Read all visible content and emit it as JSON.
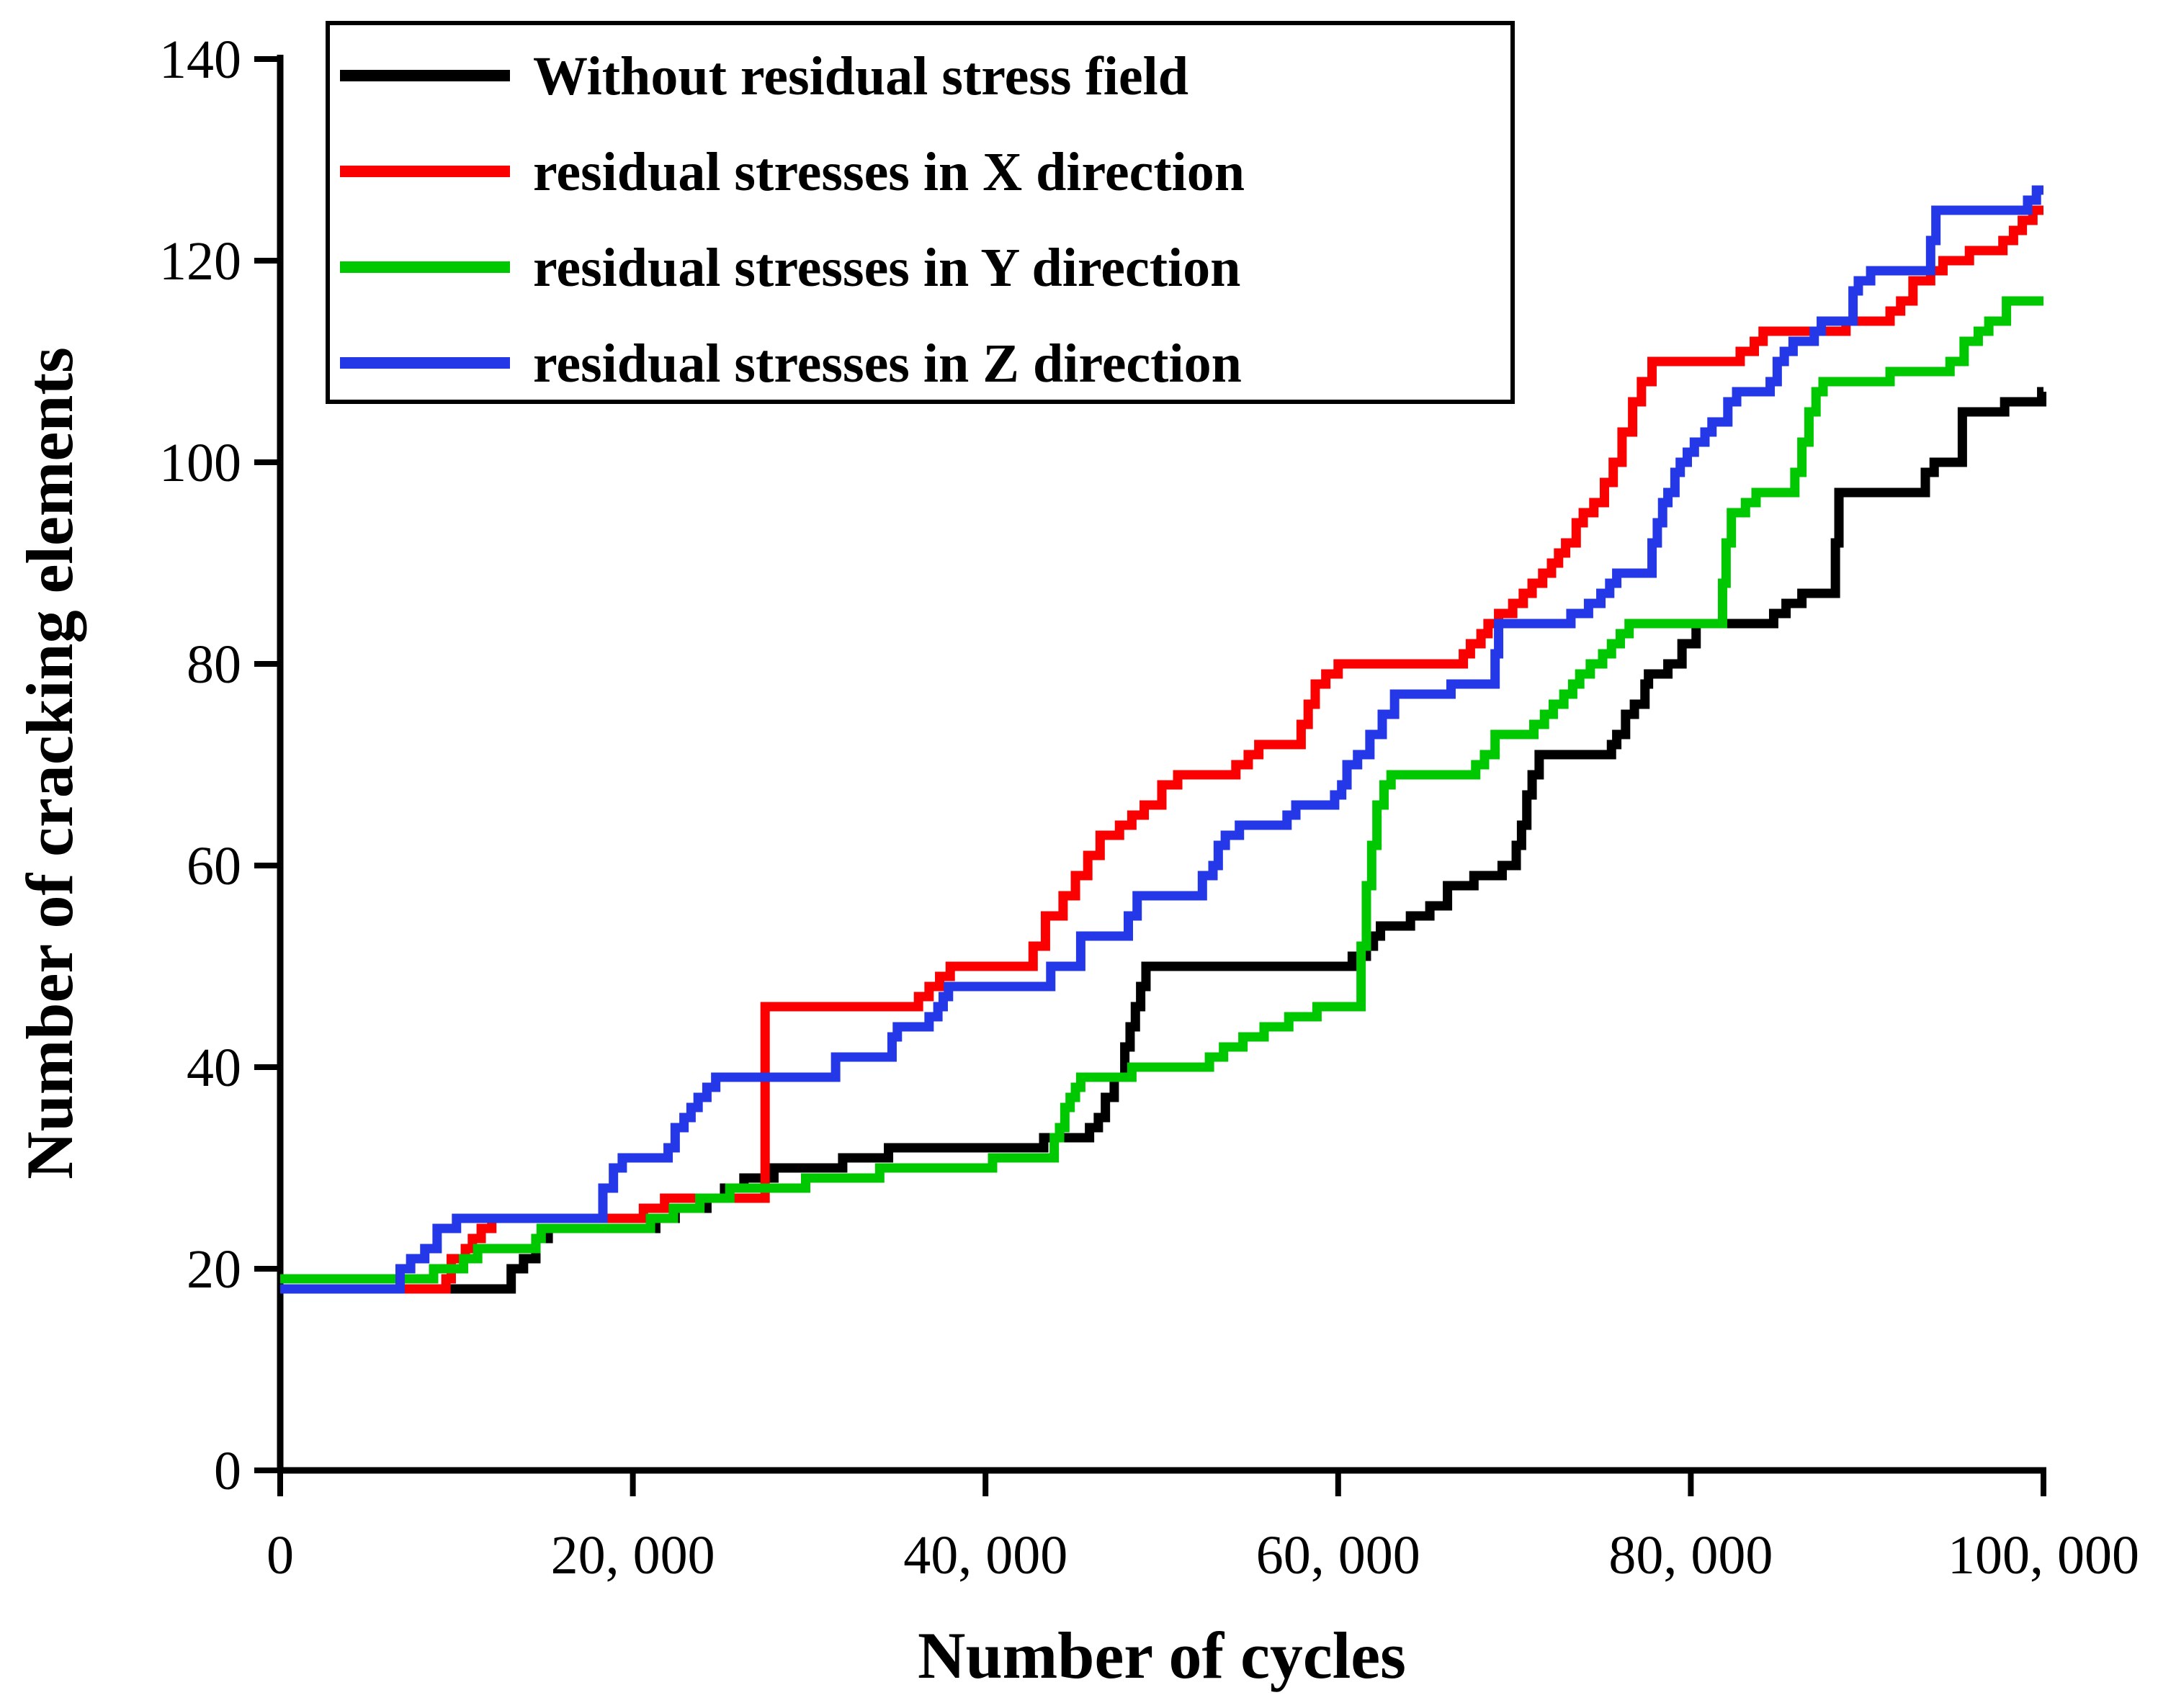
{
  "chart_data": {
    "type": "line",
    "subtype": "step-after",
    "title": "",
    "xlabel": "Number of cycles",
    "ylabel": "Number of cracking elements",
    "xlim": [
      0,
      100000
    ],
    "ylim": [
      0,
      140
    ],
    "grid": false,
    "legend_position": "top-left-inside",
    "background_color": "#ffffff",
    "axis_color": "#000000",
    "x_ticks": [
      {
        "value": 0,
        "label": "0"
      },
      {
        "value": 20000,
        "label": "20, 000"
      },
      {
        "value": 40000,
        "label": "40, 000"
      },
      {
        "value": 60000,
        "label": "60, 000"
      },
      {
        "value": 80000,
        "label": "80, 000"
      },
      {
        "value": 100000,
        "label": "100, 000"
      }
    ],
    "y_ticks": [
      {
        "value": 0,
        "label": "0"
      },
      {
        "value": 20,
        "label": "20"
      },
      {
        "value": 40,
        "label": "40"
      },
      {
        "value": 60,
        "label": "60"
      },
      {
        "value": 80,
        "label": "80"
      },
      {
        "value": 100,
        "label": "100"
      },
      {
        "value": 120,
        "label": "120"
      },
      {
        "value": 140,
        "label": "140"
      }
    ],
    "series": [
      {
        "name": "Without residual stress field",
        "color": "#000000",
        "points": [
          [
            0,
            18
          ],
          [
            13100,
            20
          ],
          [
            13800,
            21
          ],
          [
            14500,
            23
          ],
          [
            15200,
            24
          ],
          [
            21300,
            25
          ],
          [
            22400,
            26
          ],
          [
            24200,
            27
          ],
          [
            25200,
            28
          ],
          [
            26300,
            29
          ],
          [
            28000,
            30
          ],
          [
            31900,
            31
          ],
          [
            34500,
            32
          ],
          [
            43300,
            33
          ],
          [
            45900,
            34
          ],
          [
            46400,
            35
          ],
          [
            46800,
            37
          ],
          [
            47300,
            39
          ],
          [
            47900,
            42
          ],
          [
            48200,
            44
          ],
          [
            48500,
            46
          ],
          [
            48800,
            48
          ],
          [
            49100,
            50
          ],
          [
            60800,
            51
          ],
          [
            61600,
            52
          ],
          [
            62000,
            53
          ],
          [
            62400,
            54
          ],
          [
            64100,
            55
          ],
          [
            65200,
            56
          ],
          [
            66200,
            58
          ],
          [
            67700,
            59
          ],
          [
            69300,
            60
          ],
          [
            70100,
            62
          ],
          [
            70400,
            64
          ],
          [
            70700,
            67
          ],
          [
            71000,
            69
          ],
          [
            71400,
            71
          ],
          [
            75500,
            72
          ],
          [
            75800,
            73
          ],
          [
            76300,
            75
          ],
          [
            76800,
            76
          ],
          [
            77400,
            78
          ],
          [
            77600,
            79
          ],
          [
            78700,
            80
          ],
          [
            79500,
            82
          ],
          [
            80300,
            84
          ],
          [
            84700,
            85
          ],
          [
            85400,
            86
          ],
          [
            86300,
            87
          ],
          [
            88200,
            92
          ],
          [
            88400,
            97
          ],
          [
            93300,
            99
          ],
          [
            93800,
            100
          ],
          [
            95400,
            105
          ],
          [
            97800,
            106
          ],
          [
            99900,
            107
          ]
        ]
      },
      {
        "name": "residual stresses in X direction",
        "color": "#fa0000",
        "points": [
          [
            0,
            18
          ],
          [
            9400,
            19
          ],
          [
            9700,
            21
          ],
          [
            10500,
            22
          ],
          [
            10900,
            23
          ],
          [
            11400,
            24
          ],
          [
            12000,
            25
          ],
          [
            20600,
            26
          ],
          [
            21800,
            27
          ],
          [
            27500,
            46
          ],
          [
            36200,
            47
          ],
          [
            36800,
            48
          ],
          [
            37400,
            49
          ],
          [
            38000,
            50
          ],
          [
            42700,
            52
          ],
          [
            43400,
            55
          ],
          [
            44400,
            57
          ],
          [
            45100,
            59
          ],
          [
            45800,
            61
          ],
          [
            46500,
            63
          ],
          [
            47600,
            64
          ],
          [
            48300,
            65
          ],
          [
            49000,
            66
          ],
          [
            50000,
            68
          ],
          [
            50900,
            69
          ],
          [
            54200,
            70
          ],
          [
            54900,
            71
          ],
          [
            55500,
            72
          ],
          [
            57900,
            74
          ],
          [
            58300,
            76
          ],
          [
            58700,
            78
          ],
          [
            59300,
            79
          ],
          [
            60000,
            80
          ],
          [
            67100,
            81
          ],
          [
            67500,
            82
          ],
          [
            68100,
            83
          ],
          [
            68500,
            84
          ],
          [
            69100,
            85
          ],
          [
            69900,
            86
          ],
          [
            70500,
            87
          ],
          [
            71000,
            88
          ],
          [
            71600,
            89
          ],
          [
            72100,
            90
          ],
          [
            72500,
            91
          ],
          [
            72900,
            92
          ],
          [
            73500,
            94
          ],
          [
            73900,
            95
          ],
          [
            74500,
            96
          ],
          [
            75100,
            98
          ],
          [
            75600,
            100
          ],
          [
            76100,
            103
          ],
          [
            76700,
            106
          ],
          [
            77200,
            108
          ],
          [
            77800,
            110
          ],
          [
            82800,
            111
          ],
          [
            83600,
            112
          ],
          [
            84100,
            113
          ],
          [
            88800,
            114
          ],
          [
            91300,
            115
          ],
          [
            91900,
            116
          ],
          [
            92600,
            118
          ],
          [
            93600,
            119
          ],
          [
            94300,
            120
          ],
          [
            95800,
            121
          ],
          [
            97700,
            122
          ],
          [
            98300,
            123
          ],
          [
            98800,
            124
          ],
          [
            99400,
            125
          ]
        ]
      },
      {
        "name": "residual stresses in Y direction",
        "color": "#00c800",
        "points": [
          [
            0,
            19
          ],
          [
            8700,
            20
          ],
          [
            10400,
            21
          ],
          [
            11200,
            22
          ],
          [
            14500,
            23
          ],
          [
            14800,
            24
          ],
          [
            21000,
            25
          ],
          [
            22300,
            26
          ],
          [
            23800,
            27
          ],
          [
            25500,
            28
          ],
          [
            29800,
            29
          ],
          [
            34000,
            30
          ],
          [
            40400,
            31
          ],
          [
            43900,
            33
          ],
          [
            44200,
            34
          ],
          [
            44500,
            36
          ],
          [
            44800,
            37
          ],
          [
            45100,
            38
          ],
          [
            45400,
            39
          ],
          [
            48300,
            40
          ],
          [
            52700,
            41
          ],
          [
            53500,
            42
          ],
          [
            54600,
            43
          ],
          [
            55800,
            44
          ],
          [
            57200,
            45
          ],
          [
            58800,
            46
          ],
          [
            61300,
            52
          ],
          [
            61600,
            58
          ],
          [
            61900,
            62
          ],
          [
            62200,
            66
          ],
          [
            62600,
            68
          ],
          [
            63000,
            69
          ],
          [
            67800,
            70
          ],
          [
            68300,
            71
          ],
          [
            68900,
            73
          ],
          [
            71100,
            74
          ],
          [
            71700,
            75
          ],
          [
            72200,
            76
          ],
          [
            72800,
            77
          ],
          [
            73300,
            78
          ],
          [
            73700,
            79
          ],
          [
            74300,
            80
          ],
          [
            75000,
            81
          ],
          [
            75500,
            82
          ],
          [
            76000,
            83
          ],
          [
            76500,
            84
          ],
          [
            81800,
            88
          ],
          [
            82000,
            92
          ],
          [
            82300,
            95
          ],
          [
            83100,
            96
          ],
          [
            83700,
            97
          ],
          [
            85900,
            99
          ],
          [
            86300,
            102
          ],
          [
            86700,
            105
          ],
          [
            87100,
            107
          ],
          [
            87500,
            108
          ],
          [
            91300,
            109
          ],
          [
            94700,
            110
          ],
          [
            95500,
            112
          ],
          [
            96300,
            113
          ],
          [
            96900,
            114
          ],
          [
            97900,
            116
          ]
        ]
      },
      {
        "name": "residual stresses in Z direction",
        "color": "#2438e8",
        "points": [
          [
            0,
            18
          ],
          [
            6800,
            20
          ],
          [
            7400,
            21
          ],
          [
            8200,
            22
          ],
          [
            8900,
            24
          ],
          [
            10000,
            25
          ],
          [
            18300,
            28
          ],
          [
            18900,
            30
          ],
          [
            19400,
            31
          ],
          [
            22000,
            32
          ],
          [
            22400,
            34
          ],
          [
            22900,
            35
          ],
          [
            23300,
            36
          ],
          [
            23700,
            37
          ],
          [
            24200,
            38
          ],
          [
            24700,
            39
          ],
          [
            31500,
            41
          ],
          [
            34700,
            43
          ],
          [
            35000,
            44
          ],
          [
            36800,
            45
          ],
          [
            37300,
            46
          ],
          [
            37600,
            47
          ],
          [
            37900,
            48
          ],
          [
            43700,
            50
          ],
          [
            45400,
            53
          ],
          [
            48100,
            55
          ],
          [
            48600,
            57
          ],
          [
            52300,
            59
          ],
          [
            52900,
            60
          ],
          [
            53200,
            62
          ],
          [
            53600,
            63
          ],
          [
            54400,
            64
          ],
          [
            57100,
            65
          ],
          [
            57600,
            66
          ],
          [
            59800,
            67
          ],
          [
            60200,
            68
          ],
          [
            60500,
            70
          ],
          [
            61100,
            71
          ],
          [
            61800,
            73
          ],
          [
            62500,
            75
          ],
          [
            63200,
            77
          ],
          [
            66400,
            78
          ],
          [
            68900,
            81
          ],
          [
            69100,
            84
          ],
          [
            73200,
            85
          ],
          [
            74200,
            86
          ],
          [
            74900,
            87
          ],
          [
            75400,
            88
          ],
          [
            75800,
            89
          ],
          [
            77800,
            92
          ],
          [
            78100,
            94
          ],
          [
            78400,
            96
          ],
          [
            78700,
            97
          ],
          [
            79100,
            99
          ],
          [
            79400,
            100
          ],
          [
            79800,
            101
          ],
          [
            80200,
            102
          ],
          [
            80800,
            103
          ],
          [
            81200,
            104
          ],
          [
            82100,
            106
          ],
          [
            82600,
            107
          ],
          [
            84500,
            108
          ],
          [
            84900,
            110
          ],
          [
            85300,
            111
          ],
          [
            85800,
            112
          ],
          [
            87000,
            113
          ],
          [
            87400,
            114
          ],
          [
            89200,
            117
          ],
          [
            89500,
            118
          ],
          [
            90200,
            119
          ],
          [
            93600,
            122
          ],
          [
            93900,
            125
          ],
          [
            99100,
            126
          ],
          [
            99600,
            127
          ]
        ]
      }
    ]
  }
}
